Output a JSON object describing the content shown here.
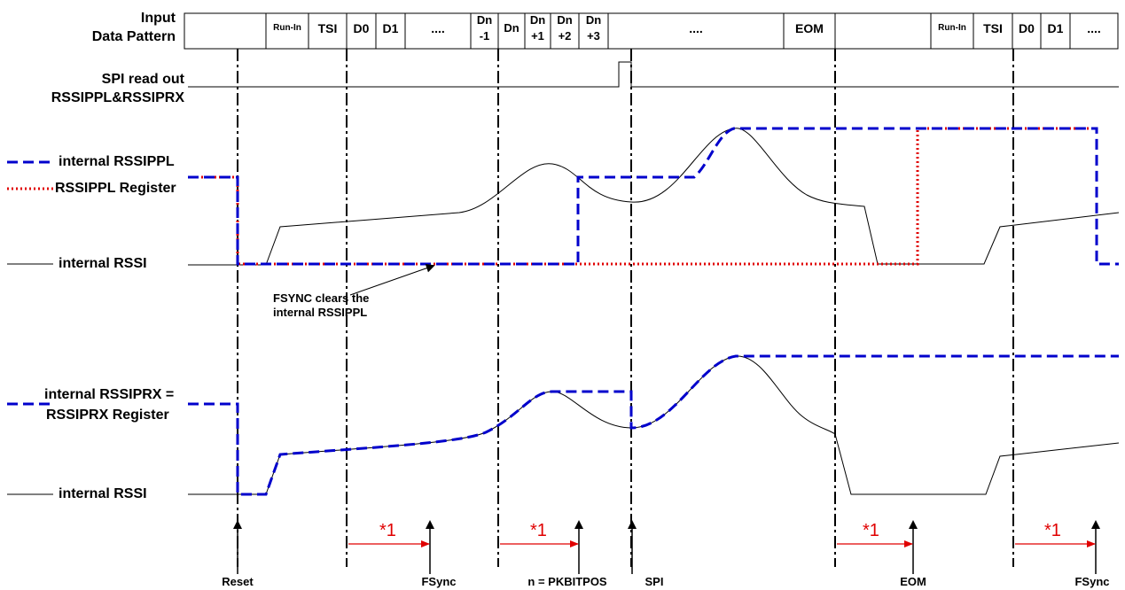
{
  "header": {
    "line1": "Input",
    "line2": "Data Pattern"
  },
  "pattern_cells": [
    {
      "line1": ""
    },
    {
      "line1": "Run-In"
    },
    {
      "line1": "TSI"
    },
    {
      "line1": "D0"
    },
    {
      "line1": "D1"
    },
    {
      "line1": "...."
    },
    {
      "line1": "Dn",
      "line2": "-1"
    },
    {
      "line1": "Dn"
    },
    {
      "line1": "Dn",
      "line2": "+1"
    },
    {
      "line1": "Dn",
      "line2": "+2"
    },
    {
      "line1": "Dn",
      "line2": "+3"
    },
    {
      "line1": "...."
    },
    {
      "line1": "EOM"
    },
    {
      "line1": ""
    },
    {
      "line1": "Run-In"
    },
    {
      "line1": "TSI"
    },
    {
      "line1": "D0"
    },
    {
      "line1": "D1"
    },
    {
      "line1": "...."
    }
  ],
  "signal_labels": {
    "spi_readout_1": "SPI read out",
    "spi_readout_2": "RSSIPPL&RSSIPRX",
    "internal_rssippl": "internal RSSIPPL",
    "rssippl_register": "RSSIPPL Register",
    "internal_rssi_1": "internal RSSI",
    "internal_rssiprx_1": "internal RSSIPRX =",
    "internal_rssiprx_2": "RSSIPRX Register",
    "internal_rssi_2": "internal RSSI"
  },
  "annotation": {
    "line1": "FSYNC clears the",
    "line2": "internal RSSIPPL"
  },
  "delay_label": "*1",
  "events": {
    "reset": "Reset",
    "fsync_1": "FSync",
    "pkbitpos": "n = PKBITPOS",
    "spi": "SPI",
    "eom": "EOM",
    "fsync_2": "FSync"
  },
  "colors": {
    "pipl_internal": "#0000cc",
    "pipl_register": "#e00000",
    "rssi": "#000000",
    "delay_arrow": "#e00000"
  }
}
